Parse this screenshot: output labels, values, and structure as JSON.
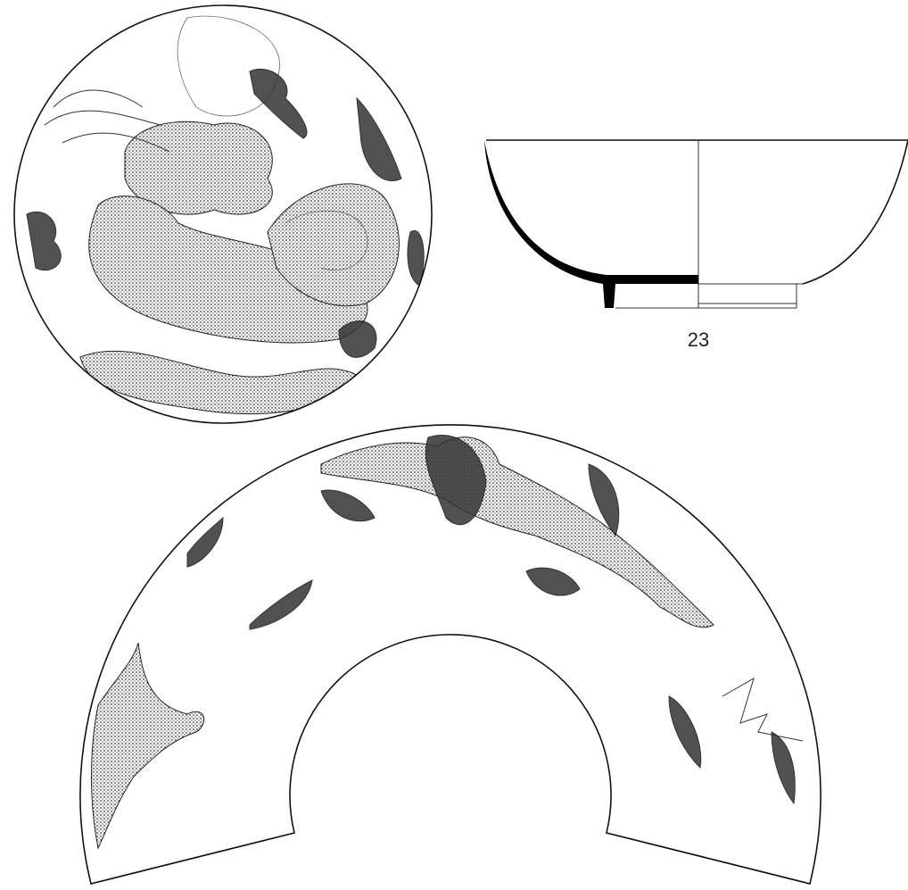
{
  "figure": {
    "label": "23"
  }
}
